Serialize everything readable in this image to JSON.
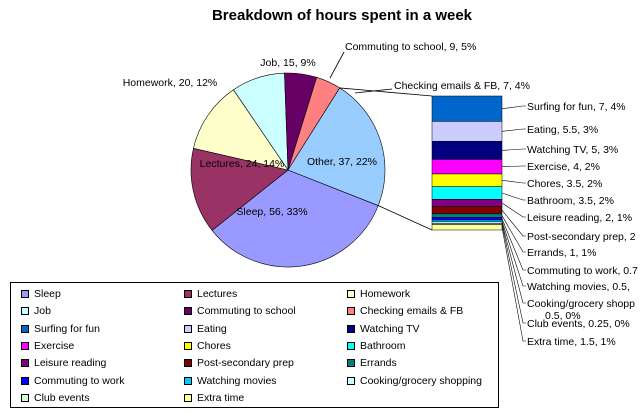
{
  "chart_data": {
    "type": "pie",
    "title": "Breakdown of hours spent in a week",
    "main_slices": [
      {
        "name": "Sleep",
        "value": 56,
        "label": "Sleep, 56, 33%",
        "color": "#9999ff"
      },
      {
        "name": "Lectures",
        "value": 24,
        "label": "Lectures, 24, 14%",
        "color": "#993366"
      },
      {
        "name": "Homework",
        "value": 20,
        "label": "Homework, 20, 12%",
        "color": "#ffffcc"
      },
      {
        "name": "Job",
        "value": 15,
        "label": "Job, 15, 9%",
        "color": "#ccffff"
      },
      {
        "name": "Commuting to school",
        "value": 9,
        "label": "Commuting to school, 9, 5%",
        "color": "#660066"
      },
      {
        "name": "Checking emails & FB",
        "value": 7,
        "label": "Checking emails & FB, 7, 4%",
        "color": "#ff8080"
      },
      {
        "name": "Other",
        "value": 37,
        "label": "Other, 37, 22%",
        "color": "#99ccff"
      }
    ],
    "breakdown_bar": [
      {
        "name": "Surfing for fun",
        "value": 7,
        "label": "Surfing for fun, 7, 4%",
        "color": "#0066cc"
      },
      {
        "name": "Eating",
        "value": 5.5,
        "label": "Eating, 5.5, 3%",
        "color": "#ccccff"
      },
      {
        "name": "Watching TV",
        "value": 5,
        "label": "Watching TV, 5, 3%",
        "color": "#000080"
      },
      {
        "name": "Exercise",
        "value": 4,
        "label": "Exercise, 4, 2%",
        "color": "#ff00ff"
      },
      {
        "name": "Chores",
        "value": 3.5,
        "label": "Chores, 3.5, 2%",
        "color": "#ffff00"
      },
      {
        "name": "Bathroom",
        "value": 3.5,
        "label": "Bathroom, 3.5, 2%",
        "color": "#00ffff"
      },
      {
        "name": "Leisure reading",
        "value": 2,
        "label": "Leisure reading, 2, 1%",
        "color": "#800080"
      },
      {
        "name": "Post-secondary prep",
        "value": 2,
        "label": "Post-secondary prep, 2",
        "color": "#800000"
      },
      {
        "name": "Errands",
        "value": 1,
        "label": "Errands, 1, 1%",
        "color": "#008080"
      },
      {
        "name": "Commuting to work",
        "value": 0.7,
        "label": "Commuting to work, 0.7",
        "color": "#0000ff"
      },
      {
        "name": "Watching movies",
        "value": 0.5,
        "label": "Watching movies, 0.5,",
        "color": "#00ccff"
      },
      {
        "name": "Cooking/grocery shopping",
        "value": 0.5,
        "label": "Cooking/grocery shopp",
        "label2": "0.5, 0%",
        "color": "#ccffff"
      },
      {
        "name": "Club events",
        "value": 0.25,
        "label": "Club events, 0.25, 0%",
        "color": "#ccffcc"
      },
      {
        "name": "Extra time",
        "value": 1.5,
        "label": "Extra time, 1.5, 1%",
        "color": "#ffff99"
      }
    ],
    "legend": {
      "placement": "bottom",
      "columns": 3,
      "items": [
        {
          "name": "Sleep",
          "color": "#9999ff"
        },
        {
          "name": "Lectures",
          "color": "#993366"
        },
        {
          "name": "Homework",
          "color": "#ffffcc"
        },
        {
          "name": "Job",
          "color": "#ccffff"
        },
        {
          "name": "Commuting to school",
          "color": "#660066"
        },
        {
          "name": "Checking emails & FB",
          "color": "#ff8080"
        },
        {
          "name": "Surfing for fun",
          "color": "#0066cc"
        },
        {
          "name": "Eating",
          "color": "#ccccff"
        },
        {
          "name": "Watching TV",
          "color": "#000080"
        },
        {
          "name": "Exercise",
          "color": "#ff00ff"
        },
        {
          "name": "Chores",
          "color": "#ffff00"
        },
        {
          "name": "Bathroom",
          "color": "#00ffff"
        },
        {
          "name": "Leisure reading",
          "color": "#800080"
        },
        {
          "name": "Post-secondary prep",
          "color": "#800000"
        },
        {
          "name": "Errands",
          "color": "#008080"
        },
        {
          "name": "Commuting to work",
          "color": "#0000ff"
        },
        {
          "name": "Watching movies",
          "color": "#00ccff"
        },
        {
          "name": "Cooking/grocery shopping",
          "color": "#ccffff"
        },
        {
          "name": "Club events",
          "color": "#ccffcc"
        },
        {
          "name": "Extra time",
          "color": "#ffff99"
        }
      ]
    }
  }
}
